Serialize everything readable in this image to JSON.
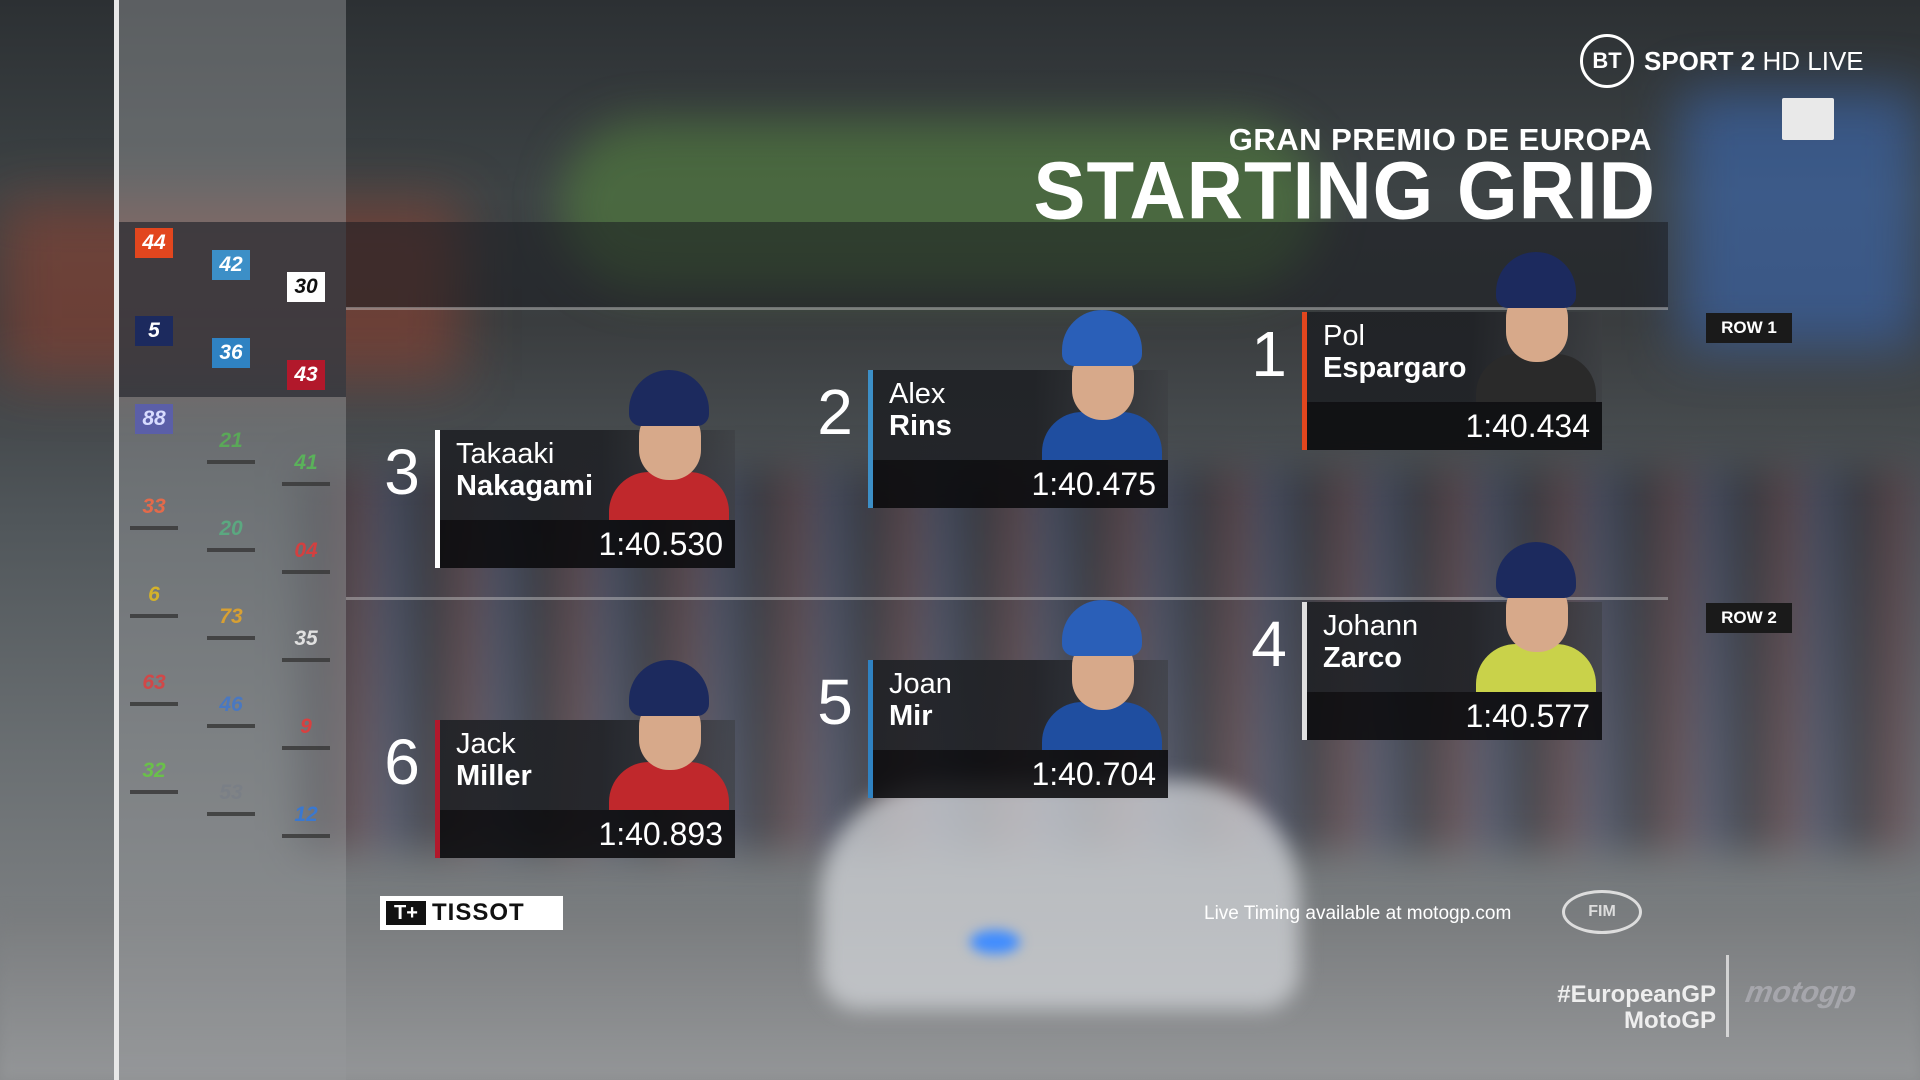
{
  "broadcaster": {
    "logo_text": "BT",
    "channel": "SPORT 2",
    "hd_live": "HD LIVE"
  },
  "header": {
    "event": "GRAN PREMIO DE EUROPA",
    "title": "STARTING GRID"
  },
  "rows": [
    {
      "label": "ROW 1"
    },
    {
      "label": "ROW 2"
    }
  ],
  "grid_overview": {
    "columns": [
      [
        {
          "number": "44",
          "bg": "#e2461e",
          "color": "#ffffff"
        },
        {
          "number": "5",
          "bg": "#1c2a5e",
          "color": "#ffffff"
        },
        {
          "number": "88",
          "bg": "#5b5fa8",
          "color": "#d8dcff"
        },
        {
          "number": "33",
          "bg": "",
          "color": "#e46a4a"
        },
        {
          "number": "6",
          "bg": "",
          "color": "#d4b22a"
        },
        {
          "number": "63",
          "bg": "",
          "color": "#d04848"
        },
        {
          "number": "32",
          "bg": "",
          "color": "#6ac04a"
        }
      ],
      [
        {
          "number": "42",
          "bg": "#3c8fc7",
          "color": "#ffffff"
        },
        {
          "number": "36",
          "bg": "#2f82c2",
          "color": "#ffffff"
        },
        {
          "number": "21",
          "bg": "",
          "color": "#5aa858"
        },
        {
          "number": "20",
          "bg": "",
          "color": "#5ba880"
        },
        {
          "number": "73",
          "bg": "",
          "color": "#d8a032"
        },
        {
          "number": "46",
          "bg": "",
          "color": "#4a78c0"
        },
        {
          "number": "53",
          "bg": "",
          "color": "#7a7f86"
        }
      ],
      [
        {
          "number": "30",
          "bg": "#ffffff",
          "color": "#111111"
        },
        {
          "number": "43",
          "bg": "#b2182b",
          "color": "#ffffff"
        },
        {
          "number": "41",
          "bg": "",
          "color": "#5ab25a"
        },
        {
          "number": "04",
          "bg": "",
          "color": "#d24040"
        },
        {
          "number": "35",
          "bg": "",
          "color": "#e0e0e0"
        },
        {
          "number": "9",
          "bg": "",
          "color": "#d84040"
        },
        {
          "number": "12",
          "bg": "",
          "color": "#3a78d0"
        }
      ]
    ]
  },
  "riders": [
    {
      "position": "1",
      "first": "Pol",
      "last": "Espargaro",
      "time": "1:40.434",
      "accent": "#e2461e",
      "helmet": "#1c2a5e",
      "suit": "#2a2a2a"
    },
    {
      "position": "2",
      "first": "Alex",
      "last": "Rins",
      "time": "1:40.475",
      "accent": "#3c8fc7",
      "helmet": "#2a5fb8",
      "suit": "#1f4ea0"
    },
    {
      "position": "3",
      "first": "Takaaki",
      "last": "Nakagami",
      "time": "1:40.530",
      "accent": "#ffffff",
      "helmet": "#1c2a5e",
      "suit": "#c0282c"
    },
    {
      "position": "4",
      "first": "Johann",
      "last": "Zarco",
      "time": "1:40.577",
      "accent": "#e0e0e0",
      "helmet": "#1c2a5e",
      "suit": "#c9d24a"
    },
    {
      "position": "5",
      "first": "Joan",
      "last": "Mir",
      "time": "1:40.704",
      "accent": "#2f82c2",
      "helmet": "#2a5fb8",
      "suit": "#1f4ea0"
    },
    {
      "position": "6",
      "first": "Jack",
      "last": "Miller",
      "time": "1:40.893",
      "accent": "#b2182b",
      "helmet": "#1c2a5e",
      "suit": "#c0282c"
    }
  ],
  "footer": {
    "sponsor": "TISSOT",
    "sponsor_mark": "T+",
    "live_timing": "Live Timing available at motogp.com",
    "fim": "FIM",
    "hashtag": "#EuropeanGP",
    "series": "MotoGP",
    "series_logo": "motogp"
  }
}
